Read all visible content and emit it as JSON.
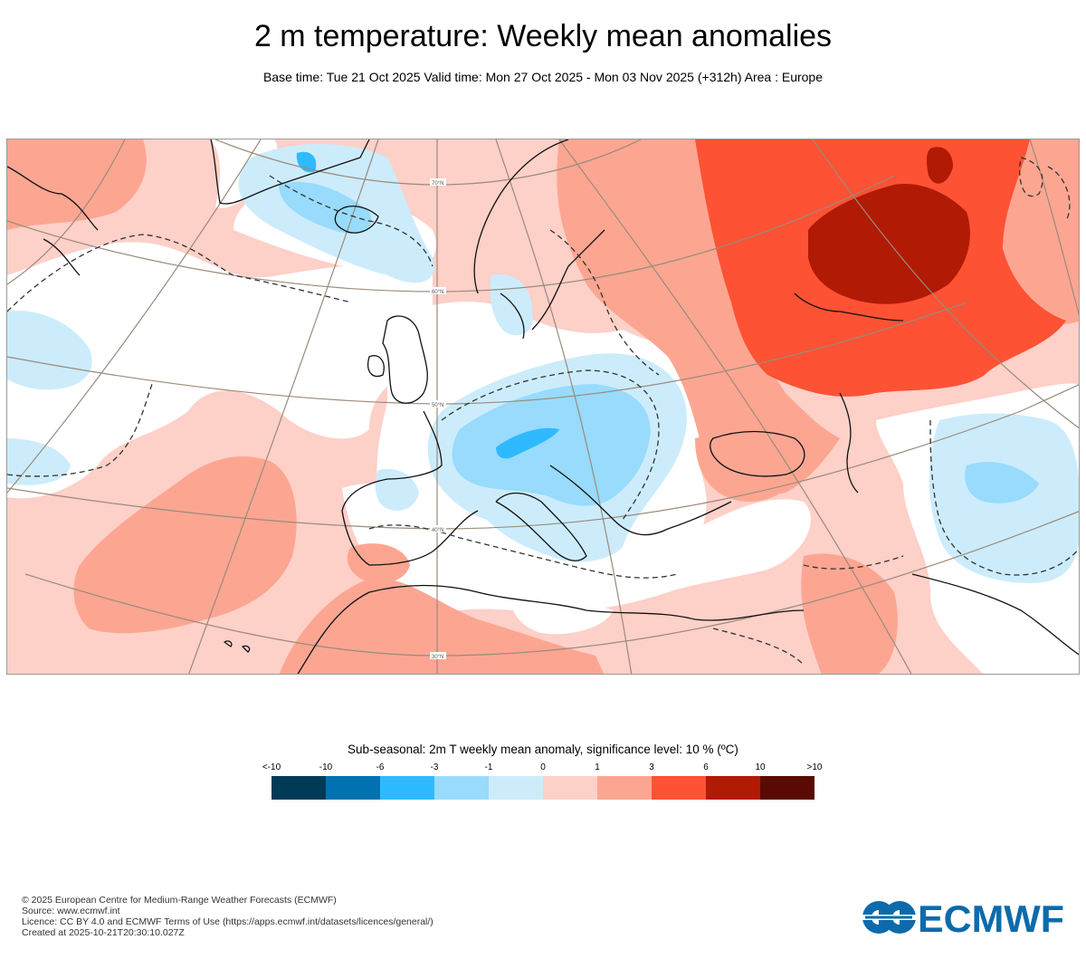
{
  "header": {
    "title": "2 m temperature: Weekly mean anomalies",
    "subtitle": "Base time: Tue 21 Oct 2025 Valid time: Mon 27 Oct 2025 - Mon 03 Nov 2025 (+312h) Area : Europe"
  },
  "map": {
    "area": "Europe",
    "latitude_labels": [
      "70°N",
      "60°N",
      "50°N",
      "40°N",
      "30°N"
    ],
    "colors": {
      "below_-10": "#003a57",
      "-10_-6": "#0072b1",
      "-6_-3": "#2fbaff",
      "-3_-1": "#98dbfc",
      "-1_0": "#ccecfc",
      "0_1": "#fdd0c8",
      "1_3": "#fca692",
      "3_6": "#fe5234",
      "6_10": "#b11a05",
      "above_10": "#590b03",
      "neutral": "#ffffff",
      "coastline": "#111111",
      "graticule": "#9b8a7a",
      "border": "#333333"
    }
  },
  "legend": {
    "title": "Sub-seasonal: 2m T weekly mean anomaly, significance level: 10 % (ºC)",
    "labels": [
      "<-10",
      "-10",
      "-6",
      "-3",
      "-1",
      "0",
      "1",
      "3",
      "6",
      "10",
      ">10"
    ],
    "swatches": [
      "#003a57",
      "#0072b1",
      "#2fbaff",
      "#98dbfc",
      "#ccecfc",
      "#fdd0c8",
      "#fca692",
      "#fe5234",
      "#b11a05",
      "#590b03"
    ]
  },
  "credits": {
    "line1": "© 2025 European Centre for Medium-Range Weather Forecasts (ECMWF)",
    "line2": "Source: www.ecmwf.int",
    "line3": "Licence: CC BY 4.0 and ECMWF Terms of Use (https://apps.ecmwf.int/datasets/licences/general/)",
    "line4": "Created at 2025-10-21T20:30:10.027Z"
  },
  "logo": {
    "text": "ECMWF",
    "color": "#0d6bab"
  }
}
